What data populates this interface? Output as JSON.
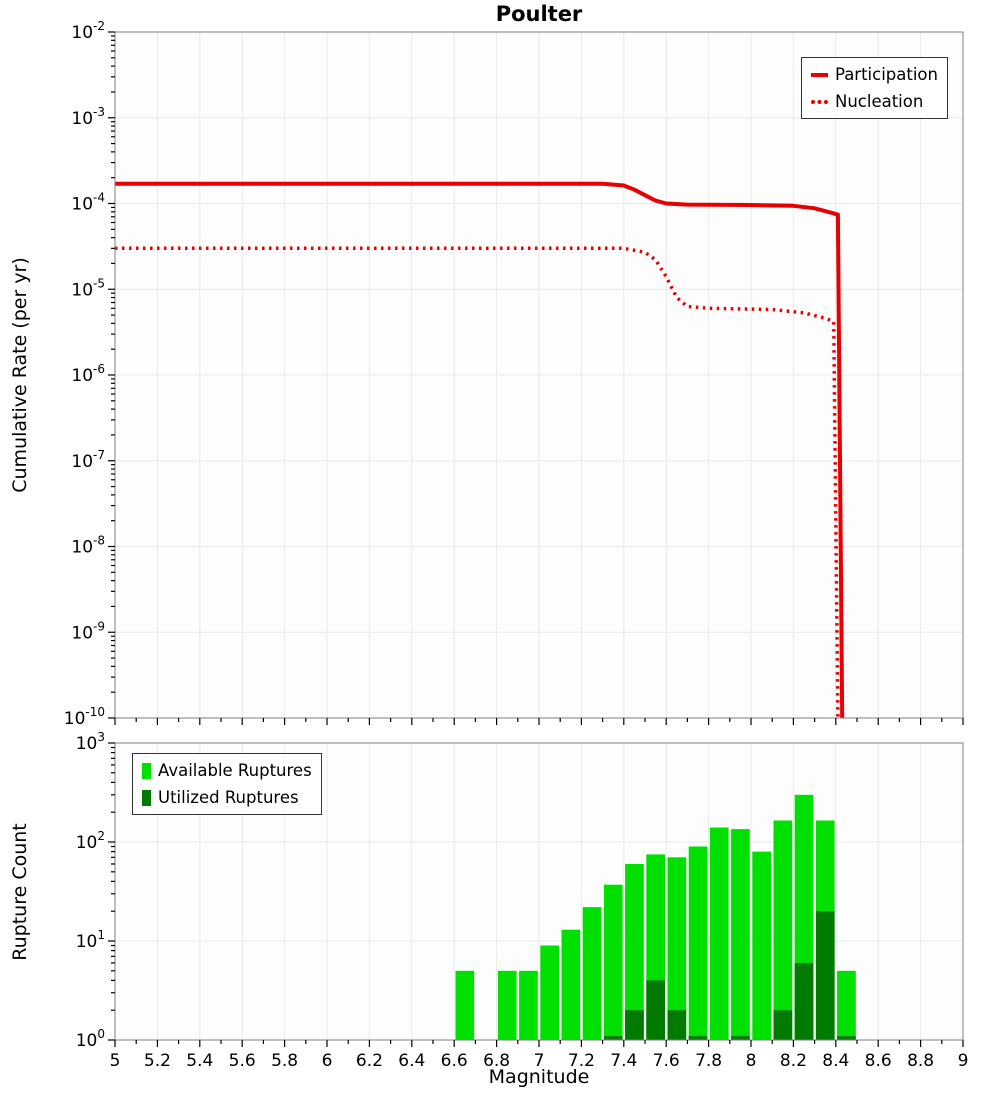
{
  "colors": {
    "line_red": "#e60000",
    "available_green": "#00e000",
    "utilized_green": "#007a00",
    "grid": "#e9e9e9",
    "plot_border": "#7f7f7f",
    "plot_bg": "#fdfdfd",
    "text": "#000000"
  },
  "chart_data": [
    {
      "type": "line",
      "title": "Poulter",
      "ylabel": "Cumulative Rate (per yr)",
      "xlabel": "Magnitude",
      "xlim": [
        5,
        9
      ],
      "ylim": [
        1e-10,
        0.01
      ],
      "yscale": "log",
      "grid": true,
      "y_tick_exponents": [
        -2,
        -3,
        -4,
        -5,
        -6,
        -7,
        -8,
        -9,
        -10
      ],
      "legend_position": "top-right",
      "series": [
        {
          "name": "Participation",
          "color": "#e60000",
          "style": "solid",
          "points": [
            [
              5.0,
              0.00017
            ],
            [
              7.3,
              0.00017
            ],
            [
              7.4,
              0.000162
            ],
            [
              7.45,
              0.000145
            ],
            [
              7.5,
              0.000125
            ],
            [
              7.55,
              0.000108
            ],
            [
              7.6,
              0.0001
            ],
            [
              7.7,
              9.7e-05
            ],
            [
              8.0,
              9.6e-05
            ],
            [
              8.2,
              9.4e-05
            ],
            [
              8.3,
              8.8e-05
            ],
            [
              8.38,
              7.8e-05
            ],
            [
              8.41,
              7.4e-05
            ],
            [
              8.43,
              1e-10
            ]
          ]
        },
        {
          "name": "Nucleation",
          "color": "#e60000",
          "style": "dotted",
          "points": [
            [
              5.0,
              3e-05
            ],
            [
              7.4,
              3e-05
            ],
            [
              7.5,
              2.7e-05
            ],
            [
              7.55,
              2.2e-05
            ],
            [
              7.6,
              1.4e-05
            ],
            [
              7.65,
              8e-06
            ],
            [
              7.7,
              6.3e-06
            ],
            [
              7.8,
              6e-06
            ],
            [
              8.1,
              5.8e-06
            ],
            [
              8.25,
              5.3e-06
            ],
            [
              8.35,
              4.6e-06
            ],
            [
              8.39,
              4.2e-06
            ],
            [
              8.41,
              1e-10
            ]
          ]
        }
      ]
    },
    {
      "type": "bar",
      "ylabel": "Rupture Count",
      "xlabel": "Magnitude",
      "xlim": [
        5,
        9
      ],
      "ylim": [
        1,
        1000
      ],
      "yscale": "log",
      "grid": true,
      "y_tick_exponents": [
        3,
        2,
        1,
        0
      ],
      "x_tick_labels": [
        "5",
        "5.2",
        "5.4",
        "5.6",
        "5.8",
        "6",
        "6.2",
        "6.4",
        "6.6",
        "6.8",
        "7",
        "7.2",
        "7.4",
        "7.6",
        "7.8",
        "8",
        "8.2",
        "8.4",
        "8.6",
        "8.8",
        "9"
      ],
      "legend_position": "top-left",
      "bar_width": 0.088,
      "series": [
        {
          "name": "Available Ruptures",
          "color": "#00e000",
          "bars": [
            [
              6.65,
              5
            ],
            [
              6.85,
              5
            ],
            [
              6.95,
              5
            ],
            [
              7.05,
              9
            ],
            [
              7.15,
              13
            ],
            [
              7.25,
              22
            ],
            [
              7.35,
              37
            ],
            [
              7.45,
              60
            ],
            [
              7.55,
              75
            ],
            [
              7.65,
              70
            ],
            [
              7.75,
              90
            ],
            [
              7.85,
              140
            ],
            [
              7.95,
              135
            ],
            [
              8.05,
              80
            ],
            [
              8.15,
              165
            ],
            [
              8.25,
              300
            ],
            [
              8.35,
              165
            ],
            [
              8.45,
              5
            ]
          ]
        },
        {
          "name": "Utilized Ruptures",
          "color": "#007a00",
          "bars": [
            [
              7.35,
              1
            ],
            [
              7.45,
              2
            ],
            [
              7.55,
              4
            ],
            [
              7.65,
              2
            ],
            [
              7.75,
              1
            ],
            [
              7.95,
              1
            ],
            [
              8.15,
              2
            ],
            [
              8.25,
              6
            ],
            [
              8.35,
              20
            ],
            [
              8.45,
              1
            ]
          ]
        }
      ]
    }
  ]
}
